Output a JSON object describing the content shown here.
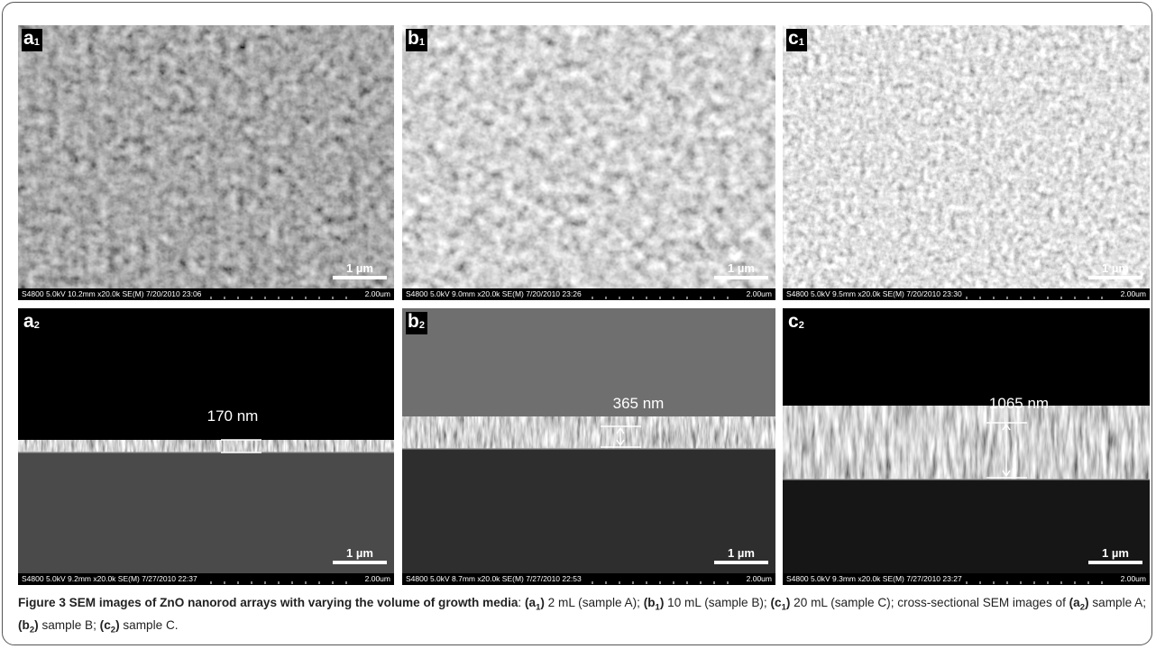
{
  "panels": [
    {
      "label": "a",
      "sub": "1",
      "scale_bar": "1 µm",
      "info": "S4800 5.0kV 10.2mm x20.0k SE(M) 7/20/2010 23:06",
      "field_width": "2.00um"
    },
    {
      "label": "b",
      "sub": "1",
      "scale_bar": "1 µm",
      "info": "S4800 5.0kV 9.0mm x20.0k SE(M) 7/20/2010 23:26",
      "field_width": "2.00um"
    },
    {
      "label": "c",
      "sub": "1",
      "scale_bar": "1 µm",
      "info": "S4800 5.0kV 9.5mm x20.0k SE(M) 7/20/2010 23:30",
      "field_width": "2.00um"
    },
    {
      "label": "a",
      "sub": "2",
      "scale_bar": "1 µm",
      "info": "S4800 5.0kV 9.2mm x20.0k SE(M) 7/27/2010 22:37",
      "field_width": "2.00um",
      "thickness": "170 nm"
    },
    {
      "label": "b",
      "sub": "2",
      "scale_bar": "1 µm",
      "info": "S4800 5.0kV 8.7mm x20.0k SE(M) 7/27/2010 22:53",
      "field_width": "2.00um",
      "thickness": "365 nm"
    },
    {
      "label": "c",
      "sub": "2",
      "scale_bar": "1 µm",
      "info": "S4800 5.0kV 9.3mm x20.0k SE(M) 7/27/2010 23:27",
      "field_width": "2.00um",
      "thickness": "1065 nm"
    }
  ],
  "caption": {
    "parts": [
      "Figure 3 SEM images of ZnO nanorod arrays with varying the volume of growth media",
      ": ",
      "(a",
      "1",
      ")",
      " 2 mL (sample A); ",
      "(b",
      "1",
      ")",
      " 10 mL (sample B); ",
      "(c",
      "1",
      ")",
      " 20 mL (sample C); cross-sectional SEM images of ",
      "(a",
      "2",
      ")",
      " sample A; ",
      "(b",
      "2",
      ")",
      " sample B; ",
      "(c",
      "2",
      ")",
      " sample C."
    ]
  }
}
